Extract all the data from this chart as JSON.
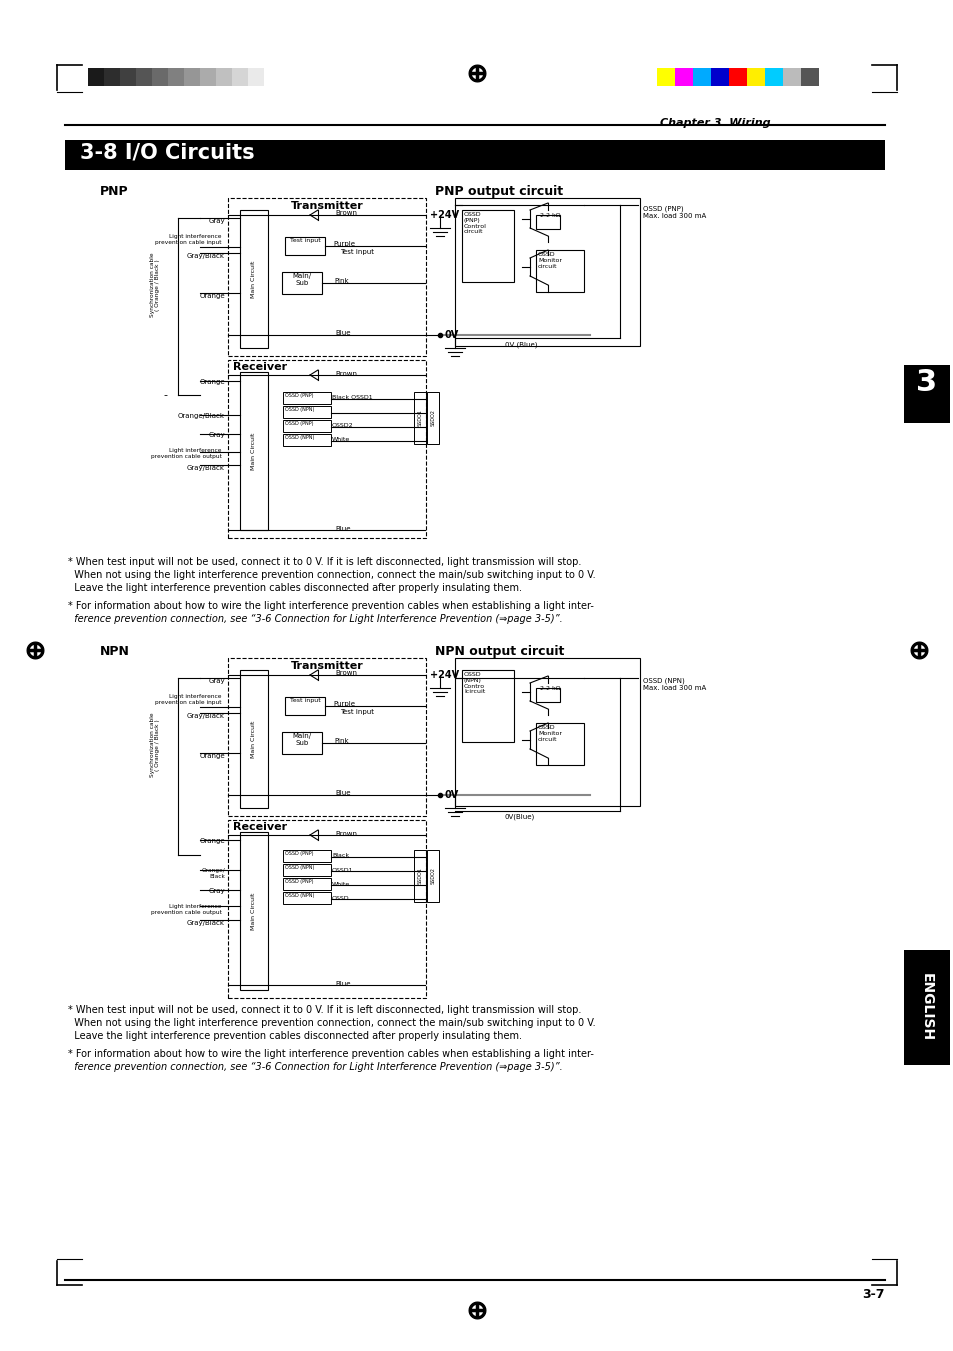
{
  "page_bg": "#ffffff",
  "title_text": "3-8 I/O Circuits",
  "chapter_text": "Chapter 3  Wiring",
  "page_number": "3-7",
  "grayscale_colors": [
    "#1a1a1a",
    "#2d2d2d",
    "#404040",
    "#555555",
    "#6a6a6a",
    "#808080",
    "#969696",
    "#ababab",
    "#c0c0c0",
    "#d5d5d5",
    "#eaeaea",
    "#ffffff"
  ],
  "color_swatches": [
    "#ffff00",
    "#ff00ff",
    "#00aaff",
    "#0000cc",
    "#ff0000",
    "#ffee00",
    "#00ccff",
    "#bbbbbb",
    "#555555"
  ],
  "footnote1_line1": "* When test input will not be used, connect it to 0 V. If it is left disconnected, light transmission will stop.",
  "footnote1_line2": "  When not using the light interference prevention connection, connect the main/sub switching input to 0 V.",
  "footnote1_line3": "  Leave the light interference prevention cables disconnected after properly insulating them.",
  "footnote2_line1": "* For information about how to wire the light interference prevention cables when establishing a light inter-",
  "footnote2_line2": "  ference prevention connection, see “3-6 Connection for Light Interference Prevention (⇒page 3-5)”.",
  "pnp_label": "PNP",
  "npn_label": "NPN",
  "pnp_output_label": "PNP output circuit",
  "npn_output_label": "NPN output circuit",
  "transmitter_label": "Transmitter",
  "receiver_label": "Receiver",
  "ossd_pnp_label": "OSSD (PNP)",
  "ossd_npn_label": "OSSD (NPN)",
  "ossd_pnp_control": "OSSD\n(PNP)\nControl\ncircuit",
  "ossd_npn_control": "OSSD\n(NPN)\nContro\nlcircuit",
  "ossd_monitor": "OSSD\nMonitor\ncircuit",
  "resistor_label": "2.2 kΩ",
  "ossd_pnp_output": "OSSD (PNP)\nMax. load 300 mA",
  "ossd_npn_output": "OSSD (NPN)\nMax. load 300 mA",
  "ov_blue_label": "0V (Blue)",
  "ov_blue_npn": "0V(Blue)",
  "light_interference_input": "Light interference\nprevention cable input",
  "light_interference_output": "Light interference\nprevention cable output",
  "sync_cable_label": "Synchronization cable\n( Orange / Black )",
  "main_circuit_label": "Main Circuit",
  "test_input_label": "Test input",
  "main_sub_label": "Main/\nSub",
  "section3_label": "3",
  "english_label": "ENGLISH",
  "minus_label": "-"
}
